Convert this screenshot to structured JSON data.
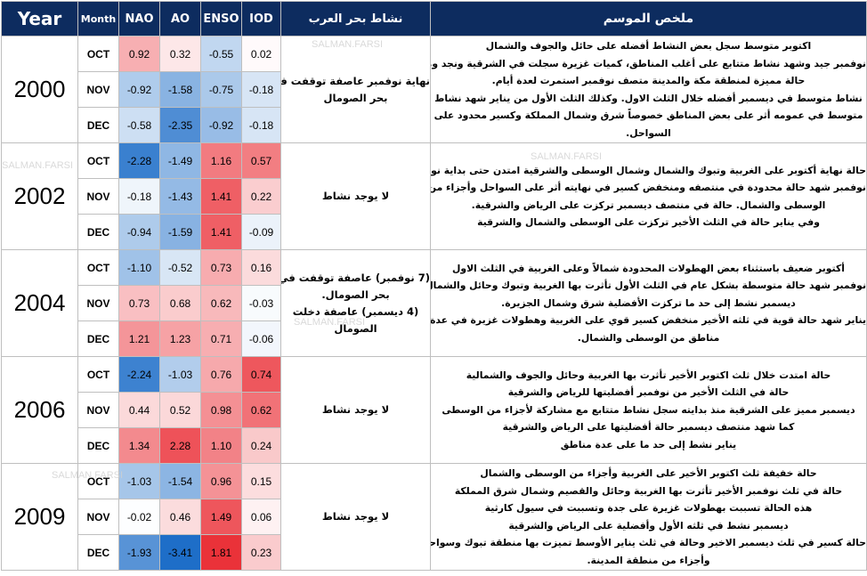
{
  "headers": {
    "year": "Year",
    "month": "Month",
    "nao": "NAO",
    "ao": "AO",
    "enso": "ENSO",
    "iod": "IOD",
    "activity": "نشاط بحر العرب",
    "summary": "ملخص الموسم"
  },
  "watermark": "SALMAN.FARSI",
  "years": [
    {
      "year": "2000",
      "activity": [
        "نهاية نوفمبر عاصفة توقفت في",
        "بحر الصومال"
      ],
      "summary": [
        "اكتوبر متوسط سجل بعض النشاط أفضله على حائل والجوف والشمال",
        "نوفمبر جيد وشهد نشاط متتابع على أغلب المناطق، كميات غزيرة سجلت في الشرقية ونجد ومكة",
        "حالة مميزة لمنطقة مكة والمدينة متصف نوفمبر استمرت لعدة أيام.",
        "نشاط متوسط في ديسمبر أفضله خلال الثلث الاول. وكذلك الثلث الأول من يناير شهد نشاط",
        "متوسط في عمومه أثر على بعض المناطق خصوصاً شرق وشمال المملكة وكسير محدود على",
        "السواحل."
      ],
      "months": [
        {
          "month": "OCT",
          "nao": "0.92",
          "ao": "0.32",
          "enso": "-0.55",
          "iod": "0.02"
        },
        {
          "month": "NOV",
          "nao": "-0.92",
          "ao": "-1.58",
          "enso": "-0.75",
          "iod": "-0.18"
        },
        {
          "month": "DEC",
          "nao": "-0.58",
          "ao": "-2.35",
          "enso": "-0.92",
          "iod": "-0.18"
        }
      ]
    },
    {
      "year": "2002",
      "activity": [
        "لا يوجد نشاط"
      ],
      "summary": [
        "حالة نهاية أكتوبر على الغربية وتبوك والشمال وشمال الوسطى والشرقية امتدن حتى بداية نوفمبر",
        "نوفمبر شهد حالة محدودة في منتصفه ومنخفض كسير في نهايته أثر على السواحل وأجزاء من",
        "الوسطى والشمال. حالة في منتصف ديسمبر تركزت على الرياض والشرقية.",
        "وفي يناير حالة في الثلث الأخير تركزت على الوسطى والشمال والشرقية"
      ],
      "months": [
        {
          "month": "OCT",
          "nao": "-2.28",
          "ao": "-1.49",
          "enso": "1.16",
          "iod": "0.57"
        },
        {
          "month": "NOV",
          "nao": "-0.18",
          "ao": "-1.43",
          "enso": "1.41",
          "iod": "0.22"
        },
        {
          "month": "DEC",
          "nao": "-0.94",
          "ao": "-1.59",
          "enso": "1.41",
          "iod": "-0.09"
        }
      ]
    },
    {
      "year": "2004",
      "activity": [
        "(7 نوفمبر) عاصفة توقفت في",
        "بحر الصومال.",
        "(4 ديسمبر) عاصفة دخلت",
        "الصومال"
      ],
      "summary": [
        "أكتوبر ضعيف باستثناء بعض الهطولات المحدودة شمالاً وعلى الغربية في الثلث الاول",
        "نوفمبر شهد حالة متوسطة بشكل عام في الثلث الأول تأثرت بها الغربية وتبوك وحائل والشمال",
        "ديسمبر نشط إلى حد ما تركزت الأفضلية شرق وشمال الجزيرة.",
        "يناير شهد حالة قوية في ثلثه الأخير منخفض كسير قوي على الغربية وهطولات غزيرة في عدة",
        "مناطق من الوسطى والشمال."
      ],
      "months": [
        {
          "month": "OCT",
          "nao": "-1.10",
          "ao": "-0.52",
          "enso": "0.73",
          "iod": "0.16"
        },
        {
          "month": "NOV",
          "nao": "0.73",
          "ao": "0.68",
          "enso": "0.62",
          "iod": "-0.03"
        },
        {
          "month": "DEC",
          "nao": "1.21",
          "ao": "1.23",
          "enso": "0.71",
          "iod": "-0.06"
        }
      ]
    },
    {
      "year": "2006",
      "activity": [
        "لا يوجد نشاط"
      ],
      "summary": [
        "حالة امتدت خلال ثلث اكتوبر الأخير تأثرت بها الغربية وحائل والجوف والشمالية",
        "حالة في الثلث الأخير من نوفمبر أفضليتها للرياض والشرقية",
        "ديسمبر مميز على الشرقية منذ بدايته سجل نشاط متتابع مع مشاركة لأجزاء من الوسطى",
        "كما شهد منتصف ديسمبر حالة أفضليتها على الرياض والشرقية",
        "يناير نشط إلى حد ما على عدة مناطق"
      ],
      "months": [
        {
          "month": "OCT",
          "nao": "-2.24",
          "ao": "-1.03",
          "enso": "0.76",
          "iod": "0.74"
        },
        {
          "month": "NOV",
          "nao": "0.44",
          "ao": "0.52",
          "enso": "0.98",
          "iod": "0.62"
        },
        {
          "month": "DEC",
          "nao": "1.34",
          "ao": "2.28",
          "enso": "1.10",
          "iod": "0.24"
        }
      ]
    },
    {
      "year": "2009",
      "activity": [
        "لا يوجد نشاط"
      ],
      "summary": [
        "حالة خفيفة ثلث اكتوبر الأخير على الغربية وأجزاء من الوسطى والشمال",
        "حالة في ثلث نوفمبر الأخير تأثرت بها الغربية وحائل والقصيم وشمال شرق المملكة",
        "هذه الحالة تسببت بهطولات غزيرة على جدة وتسببت في سيول كارثية",
        "ديسمبر نشط في ثلثه الأول وأفضلية على الرياض والشرقية",
        "حالة كسير في ثلث ديسمبر الاخير وحالة في ثلث يناير الأوسط تميزت بها منطقة تبوك وسواحلها",
        "وأجزاء من منطقة المدينة."
      ],
      "months": [
        {
          "month": "OCT",
          "nao": "-1.03",
          "ao": "-1.54",
          "enso": "0.96",
          "iod": "0.15"
        },
        {
          "month": "NOV",
          "nao": "-0.02",
          "ao": "0.46",
          "enso": "1.49",
          "iod": "0.06"
        },
        {
          "month": "DEC",
          "nao": "-1.93",
          "ao": "-3.41",
          "enso": "1.81",
          "iod": "0.23"
        }
      ]
    }
  ]
}
